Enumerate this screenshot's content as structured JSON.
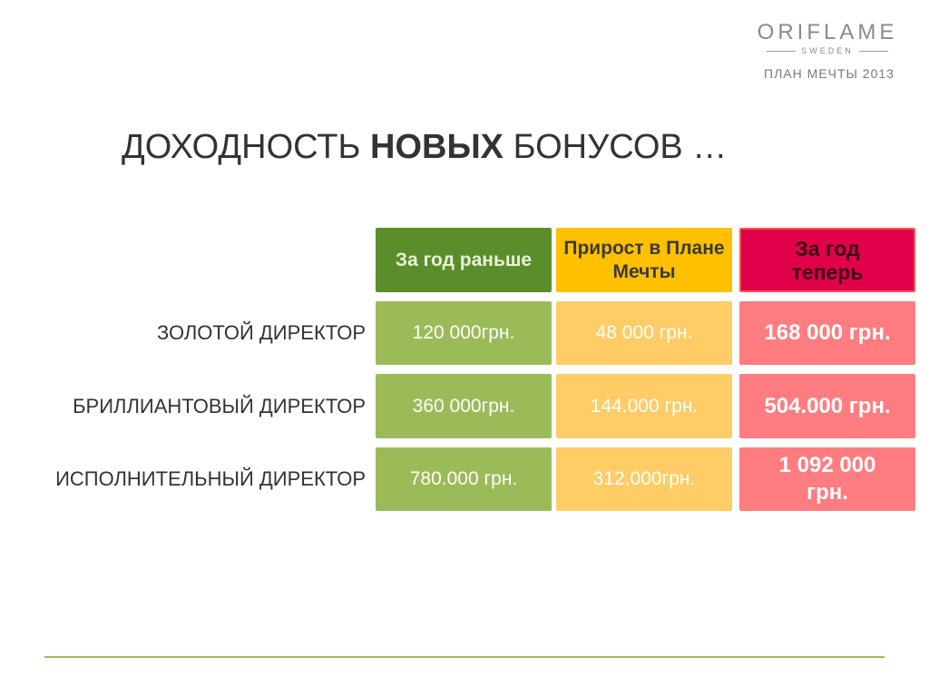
{
  "brand": {
    "name": "ORIFLAME",
    "sub": "SWEDEN",
    "plan_label": "ПЛАН МЕЧТЫ 2013"
  },
  "title": {
    "part1": "ДОХОДНОСТЬ ",
    "bold": "НОВЫХ",
    "part2": " БОНУСОВ …"
  },
  "table": {
    "headers": [
      {
        "label": "За год раньше",
        "color": "#5b8e2a"
      },
      {
        "label": "Прирост в Плане Мечты",
        "color": "#ffc000"
      },
      {
        "label": "За год теперь",
        "color": "#e1004a"
      }
    ],
    "rows": [
      {
        "label": "ЗОЛОТОЙ ДИРЕКТОР",
        "before": "120 000грн.",
        "growth": "48 000 грн.",
        "now": "168 000 грн."
      },
      {
        "label": "БРИЛЛИАНТОВЫЙ ДИРЕКТОР",
        "before": "360 000грн.",
        "growth": "144.000 грн.",
        "now": "504.000 грн."
      },
      {
        "label": "ИСПОЛНИТЕЛЬНЫЙ ДИРЕКТОР",
        "before": "780.000 грн.",
        "growth": "312.000грн.",
        "now": "1 092 000 грн."
      }
    ]
  },
  "colors": {
    "green_cell": "#9bbb59",
    "yellow_cell": "#ffcc66",
    "red_cell": "#ff7c80",
    "footer_line": "#9bbb59"
  }
}
